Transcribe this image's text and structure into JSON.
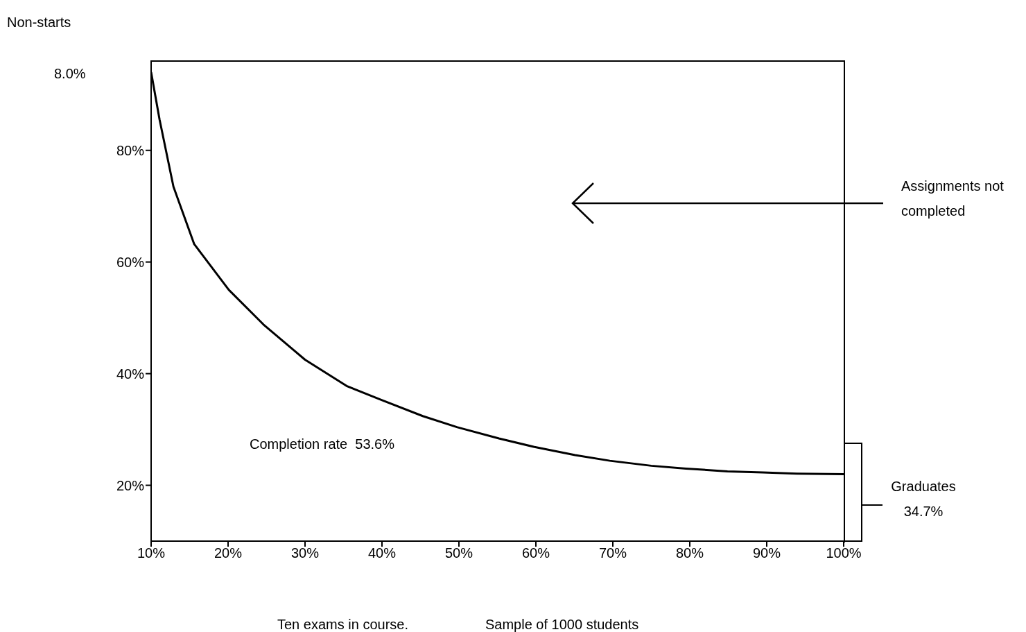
{
  "chart_data": {
    "type": "line",
    "x": [
      10,
      11.1,
      12.9,
      15.6,
      20.1,
      24.6,
      30,
      35.4,
      39.9,
      45.3,
      49.8,
      55.2,
      59.7,
      65.1,
      69.6,
      75,
      79.5,
      84.9,
      89.5,
      93.9,
      100
    ],
    "series": [
      {
        "color": "#000000",
        "values": [
          94,
          85.5,
          73.5,
          63.2,
          55,
          48.8,
          42.5,
          37.8,
          35.3,
          32.4,
          30.4,
          28.4,
          26.9,
          25.4,
          24.4,
          23.5,
          23,
          22.5,
          22.3,
          22.1,
          22
        ]
      }
    ],
    "xlim": [
      10,
      100
    ],
    "xticks": [
      {
        "value": 10,
        "label": "10%"
      },
      {
        "value": 20,
        "label": "20%"
      },
      {
        "value": 30,
        "label": "30%"
      },
      {
        "value": 40,
        "label": "40%"
      },
      {
        "value": 50,
        "label": "50%"
      },
      {
        "value": 60,
        "label": "60%"
      },
      {
        "value": 70,
        "label": "70%"
      },
      {
        "value": 80,
        "label": "80%"
      },
      {
        "value": 90,
        "label": "90%"
      },
      {
        "value": 100,
        "label": "100%"
      }
    ],
    "ylim": [
      10,
      96
    ],
    "yticks": [
      {
        "value": 20,
        "label": "20%"
      },
      {
        "value": 40,
        "label": "40%"
      },
      {
        "value": 60,
        "label": "60%"
      },
      {
        "value": 80,
        "label": "80%"
      }
    ],
    "grid": false,
    "legend": false,
    "marker": "none",
    "line_style": "solid",
    "annotations": [
      "Non-starts",
      "8.0%",
      "Assignments not completed",
      "Completion rate  53.6%",
      "Graduates 34.7%",
      "Ten exams in course.",
      "Sample of 1000 students"
    ]
  }
}
